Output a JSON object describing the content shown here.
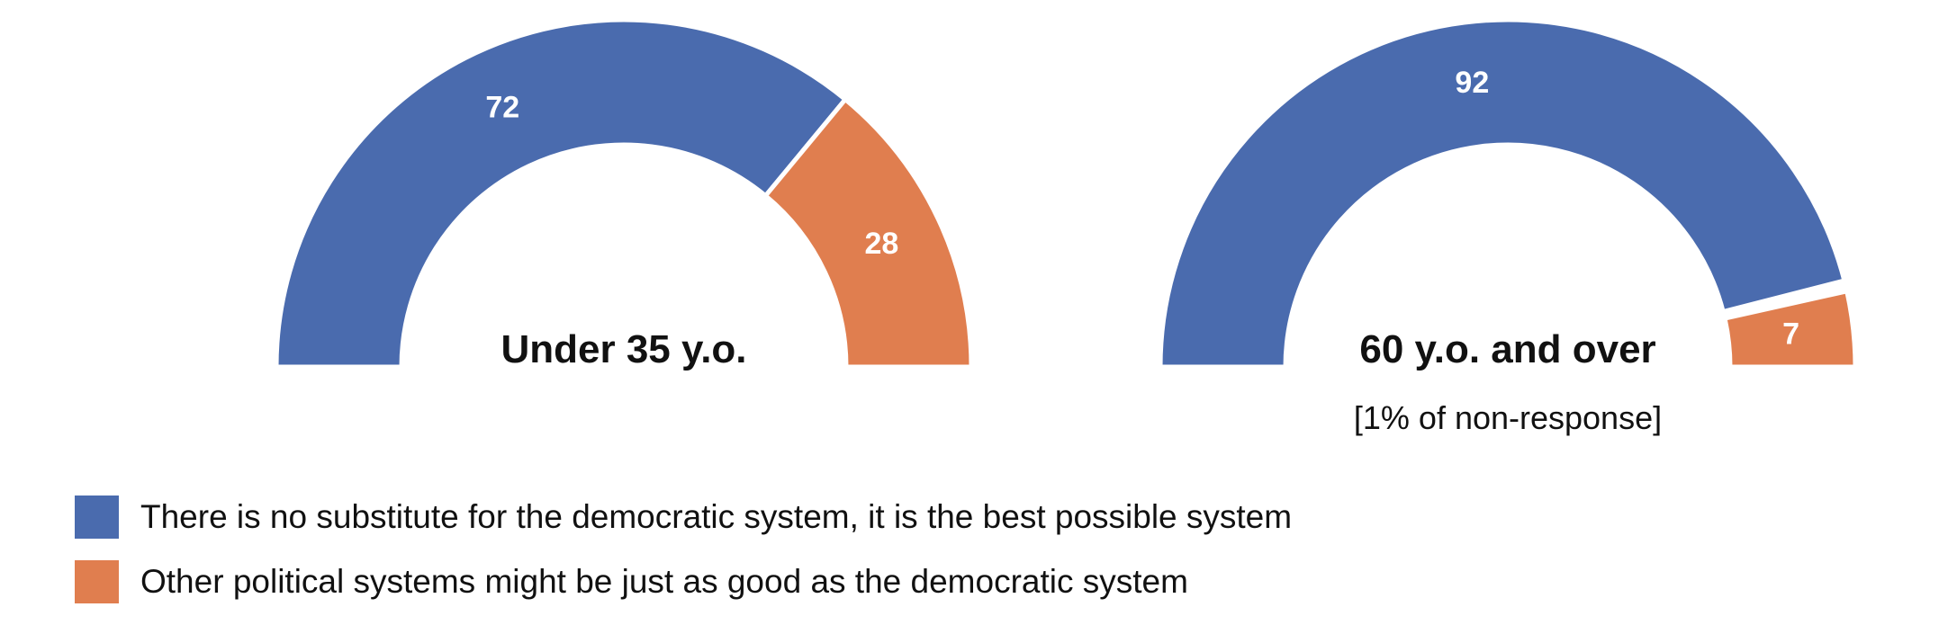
{
  "chart_data": {
    "type": "pie",
    "subtype": "half-donut",
    "colors": {
      "best_system": "#4A6BAE",
      "others_as_good": "#E07E4F"
    },
    "legend_position": "bottom-left",
    "legend": [
      {
        "key": "best_system",
        "label": "There is no substitute for the democratic system, it is the best possible system"
      },
      {
        "key": "others_as_good",
        "label": "Other political systems might be just as good as the democratic system"
      }
    ],
    "gauges": [
      {
        "title": "Under 35 y.o.",
        "note": "",
        "values": {
          "best_system": 72,
          "others_as_good": 28
        },
        "labels": {
          "best_system": "72",
          "others_as_good": "28"
        }
      },
      {
        "title": "60 y.o. and over",
        "note": "[1% of non-response]",
        "values": {
          "best_system": 92,
          "others_as_good": 7
        },
        "labels": {
          "best_system": "92",
          "others_as_good": "7"
        }
      }
    ]
  }
}
